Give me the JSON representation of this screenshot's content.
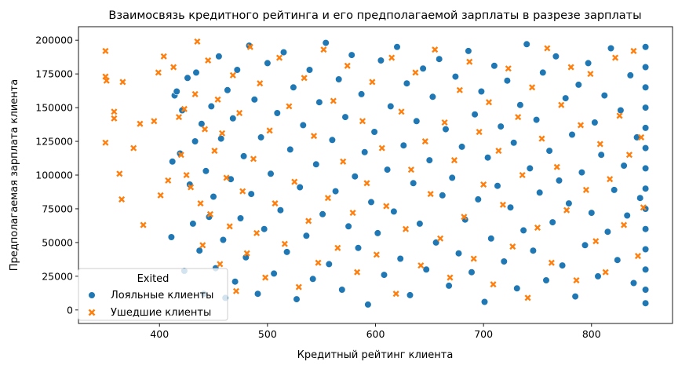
{
  "chart_data": {
    "type": "scatter",
    "title": "Взаимосвязь кредитного рейтинга и его предполагаемой зарплаты в разрезе зарплаты",
    "xlabel": "Кредитный рейтинг клиента",
    "ylabel": "Предполагаемая зарплата клиента",
    "xlim": [
      325,
      875
    ],
    "ylim": [
      -10000,
      210000
    ],
    "xticks": [
      400,
      500,
      600,
      700,
      800
    ],
    "yticks": [
      0,
      25000,
      50000,
      75000,
      100000,
      125000,
      150000,
      175000,
      200000
    ],
    "grid": false,
    "legend": {
      "title": "Exited",
      "placement": "lower-left",
      "entries": [
        {
          "label": "Лояльные клиенты",
          "color": "#1f77b4",
          "marker": "circle"
        },
        {
          "label": "Ушедшие клиенты",
          "color": "#ff7f0e",
          "marker": "x"
        }
      ]
    },
    "series": [
      {
        "name": "Лояльные клиенты",
        "color": "#1f77b4",
        "marker": "circle",
        "points": [
          [
            411,
            54000
          ],
          [
            412,
            110000
          ],
          [
            414,
            159000
          ],
          [
            416,
            162000
          ],
          [
            419,
            116000
          ],
          [
            421,
            148000
          ],
          [
            423,
            29000
          ],
          [
            426,
            172000
          ],
          [
            428,
            93000
          ],
          [
            431,
            64000
          ],
          [
            433,
            125000
          ],
          [
            434,
            176000
          ],
          [
            437,
            44000
          ],
          [
            439,
            138000
          ],
          [
            441,
            12000
          ],
          [
            443,
            103000
          ],
          [
            446,
            69000
          ],
          [
            448,
            151000
          ],
          [
            450,
            84000
          ],
          [
            452,
            31000
          ],
          [
            455,
            188000
          ],
          [
            457,
            127000
          ],
          [
            459,
            52000
          ],
          [
            461,
            9000
          ],
          [
            463,
            163000
          ],
          [
            466,
            97000
          ],
          [
            468,
            142000
          ],
          [
            470,
            21000
          ],
          [
            472,
            178000
          ],
          [
            475,
            68000
          ],
          [
            478,
            114000
          ],
          [
            480,
            39000
          ],
          [
            483,
            196000
          ],
          [
            485,
            86000
          ],
          [
            488,
            156000
          ],
          [
            491,
            12000
          ],
          [
            494,
            128000
          ],
          [
            497,
            60000
          ],
          [
            500,
            183000
          ],
          [
            503,
            101000
          ],
          [
            506,
            27000
          ],
          [
            509,
            146000
          ],
          [
            512,
            74000
          ],
          [
            515,
            191000
          ],
          [
            518,
            43000
          ],
          [
            521,
            119000
          ],
          [
            524,
            165000
          ],
          [
            527,
            8000
          ],
          [
            530,
            91000
          ],
          [
            533,
            137000
          ],
          [
            536,
            55000
          ],
          [
            539,
            178000
          ],
          [
            542,
            23000
          ],
          [
            545,
            108000
          ],
          [
            548,
            154000
          ],
          [
            551,
            71000
          ],
          [
            554,
            198000
          ],
          [
            557,
            34000
          ],
          [
            560,
            126000
          ],
          [
            563,
            88000
          ],
          [
            566,
            171000
          ],
          [
            569,
            15000
          ],
          [
            572,
            143000
          ],
          [
            575,
            62000
          ],
          [
            578,
            189000
          ],
          [
            581,
            99000
          ],
          [
            584,
            46000
          ],
          [
            587,
            160000
          ],
          [
            590,
            117000
          ],
          [
            593,
            4000
          ],
          [
            596,
            80000
          ],
          [
            599,
            132000
          ],
          [
            602,
            57000
          ],
          [
            605,
            185000
          ],
          [
            608,
            26000
          ],
          [
            611,
            104000
          ],
          [
            614,
            151000
          ],
          [
            617,
            73000
          ],
          [
            620,
            195000
          ],
          [
            623,
            38000
          ],
          [
            626,
            122000
          ],
          [
            629,
            168000
          ],
          [
            632,
            11000
          ],
          [
            635,
            94000
          ],
          [
            638,
            140000
          ],
          [
            641,
            64000
          ],
          [
            644,
            179000
          ],
          [
            647,
            30000
          ],
          [
            650,
            111000
          ],
          [
            653,
            158000
          ],
          [
            656,
            50000
          ],
          [
            659,
            186000
          ],
          [
            662,
            85000
          ],
          [
            665,
            134000
          ],
          [
            668,
            18000
          ],
          [
            671,
            98000
          ],
          [
            674,
            173000
          ],
          [
            677,
            42000
          ],
          [
            680,
            121000
          ],
          [
            683,
            67000
          ],
          [
            686,
            192000
          ],
          [
            689,
            28000
          ],
          [
            692,
            145000
          ],
          [
            695,
            82000
          ],
          [
            698,
            162000
          ],
          [
            701,
            6000
          ],
          [
            704,
            113000
          ],
          [
            707,
            53000
          ],
          [
            710,
            181000
          ],
          [
            713,
            92000
          ],
          [
            716,
            136000
          ],
          [
            719,
            36000
          ],
          [
            722,
            170000
          ],
          [
            725,
            76000
          ],
          [
            728,
            124000
          ],
          [
            731,
            16000
          ],
          [
            734,
            152000
          ],
          [
            737,
            59000
          ],
          [
            740,
            197000
          ],
          [
            743,
            105000
          ],
          [
            746,
            44000
          ],
          [
            749,
            141000
          ],
          [
            752,
            87000
          ],
          [
            755,
            176000
          ],
          [
            758,
            22000
          ],
          [
            761,
            118000
          ],
          [
            764,
            65000
          ],
          [
            767,
            188000
          ],
          [
            770,
            96000
          ],
          [
            773,
            33000
          ],
          [
            776,
            157000
          ],
          [
            779,
            79000
          ],
          [
            782,
            130000
          ],
          [
            785,
            10000
          ],
          [
            788,
            167000
          ],
          [
            791,
            102000
          ],
          [
            794,
            48000
          ],
          [
            797,
            183000
          ],
          [
            800,
            72000
          ],
          [
            803,
            139000
          ],
          [
            806,
            25000
          ],
          [
            809,
            115000
          ],
          [
            812,
            159000
          ],
          [
            815,
            58000
          ],
          [
            818,
            194000
          ],
          [
            821,
            89000
          ],
          [
            824,
            37000
          ],
          [
            827,
            148000
          ],
          [
            830,
            107000
          ],
          [
            833,
            70000
          ],
          [
            836,
            174000
          ],
          [
            839,
            20000
          ],
          [
            842,
            128000
          ],
          [
            845,
            83000
          ],
          [
            850,
            5000
          ],
          [
            850,
            15000
          ],
          [
            850,
            30000
          ],
          [
            850,
            45000
          ],
          [
            850,
            60000
          ],
          [
            850,
            75000
          ],
          [
            850,
            90000
          ],
          [
            850,
            105000
          ],
          [
            850,
            120000
          ],
          [
            850,
            135000
          ],
          [
            850,
            150000
          ],
          [
            850,
            165000
          ],
          [
            850,
            180000
          ],
          [
            850,
            195000
          ]
        ]
      },
      {
        "name": "Ушедшие клиенты",
        "color": "#ff7f0e",
        "marker": "x",
        "points": [
          [
            350,
            192000
          ],
          [
            350,
            173000
          ],
          [
            351,
            170000
          ],
          [
            350,
            124000
          ],
          [
            358,
            147000
          ],
          [
            358,
            142000
          ],
          [
            363,
            101000
          ],
          [
            365,
            82000
          ],
          [
            366,
            169000
          ],
          [
            376,
            120000
          ],
          [
            382,
            138000
          ],
          [
            385,
            63000
          ],
          [
            395,
            140000
          ],
          [
            399,
            176000
          ],
          [
            401,
            85000
          ],
          [
            404,
            188000
          ],
          [
            408,
            96000
          ],
          [
            413,
            180000
          ],
          [
            418,
            143000
          ],
          [
            420,
            115000
          ],
          [
            423,
            149000
          ],
          [
            425,
            100000
          ],
          [
            429,
            91000
          ],
          [
            433,
            160000
          ],
          [
            435,
            199000
          ],
          [
            438,
            79000
          ],
          [
            440,
            48000
          ],
          [
            442,
            134000
          ],
          [
            445,
            185000
          ],
          [
            447,
            71000
          ],
          [
            451,
            118000
          ],
          [
            454,
            156000
          ],
          [
            456,
            34000
          ],
          [
            458,
            131000
          ],
          [
            462,
            98000
          ],
          [
            465,
            62000
          ],
          [
            468,
            174000
          ],
          [
            471,
            14000
          ],
          [
            474,
            146000
          ],
          [
            477,
            88000
          ],
          [
            481,
            42000
          ],
          [
            484,
            195000
          ],
          [
            487,
            112000
          ],
          [
            490,
            57000
          ],
          [
            493,
            168000
          ],
          [
            498,
            24000
          ],
          [
            502,
            133000
          ],
          [
            507,
            79000
          ],
          [
            511,
            187000
          ],
          [
            516,
            49000
          ],
          [
            520,
            151000
          ],
          [
            525,
            95000
          ],
          [
            529,
            17000
          ],
          [
            534,
            172000
          ],
          [
            538,
            66000
          ],
          [
            543,
            129000
          ],
          [
            547,
            35000
          ],
          [
            552,
            193000
          ],
          [
            556,
            83000
          ],
          [
            561,
            155000
          ],
          [
            565,
            46000
          ],
          [
            570,
            110000
          ],
          [
            574,
            181000
          ],
          [
            579,
            72000
          ],
          [
            583,
            28000
          ],
          [
            588,
            140000
          ],
          [
            592,
            94000
          ],
          [
            597,
            169000
          ],
          [
            601,
            41000
          ],
          [
            606,
            120000
          ],
          [
            610,
            77000
          ],
          [
            615,
            187000
          ],
          [
            619,
            12000
          ],
          [
            624,
            147000
          ],
          [
            628,
            60000
          ],
          [
            633,
            104000
          ],
          [
            637,
            176000
          ],
          [
            642,
            33000
          ],
          [
            646,
            125000
          ],
          [
            651,
            86000
          ],
          [
            655,
            193000
          ],
          [
            660,
            53000
          ],
          [
            664,
            139000
          ],
          [
            669,
            24000
          ],
          [
            673,
            111000
          ],
          [
            678,
            163000
          ],
          [
            682,
            69000
          ],
          [
            687,
            184000
          ],
          [
            691,
            38000
          ],
          [
            696,
            132000
          ],
          [
            700,
            93000
          ],
          [
            705,
            154000
          ],
          [
            709,
            19000
          ],
          [
            714,
            118000
          ],
          [
            718,
            78000
          ],
          [
            723,
            179000
          ],
          [
            727,
            47000
          ],
          [
            732,
            143000
          ],
          [
            736,
            100000
          ],
          [
            741,
            9000
          ],
          [
            745,
            165000
          ],
          [
            750,
            61000
          ],
          [
            754,
            127000
          ],
          [
            759,
            194000
          ],
          [
            763,
            35000
          ],
          [
            768,
            106000
          ],
          [
            772,
            152000
          ],
          [
            777,
            74000
          ],
          [
            781,
            180000
          ],
          [
            786,
            22000
          ],
          [
            790,
            137000
          ],
          [
            795,
            89000
          ],
          [
            799,
            175000
          ],
          [
            804,
            51000
          ],
          [
            808,
            123000
          ],
          [
            813,
            28000
          ],
          [
            817,
            97000
          ],
          [
            822,
            187000
          ],
          [
            826,
            144000
          ],
          [
            830,
            63000
          ],
          [
            835,
            115000
          ],
          [
            839,
            192000
          ],
          [
            843,
            40000
          ],
          [
            846,
            128000
          ],
          [
            848,
            76000
          ]
        ]
      }
    ]
  }
}
